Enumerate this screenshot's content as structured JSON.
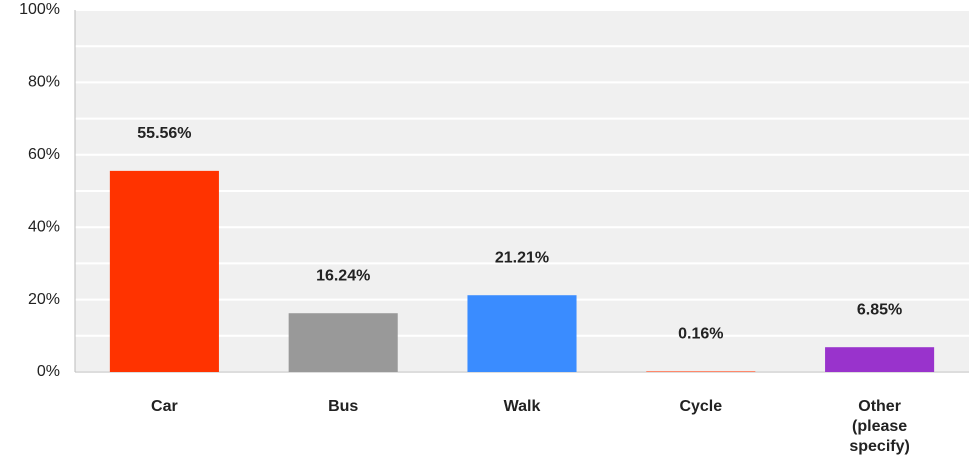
{
  "chart_data": {
    "type": "bar",
    "categories": [
      "Car",
      "Bus",
      "Walk",
      "Cycle",
      "Other (please specify)"
    ],
    "values": [
      55.56,
      16.24,
      21.21,
      0.16,
      6.85
    ],
    "value_labels": [
      "55.56%",
      "16.24%",
      "21.21%",
      "0.16%",
      "6.85%"
    ],
    "colors": [
      "#ff3300",
      "#999999",
      "#3a8cff",
      "#ff3300",
      "#9933cc"
    ],
    "ylim": [
      0,
      100
    ],
    "yticks": [
      {
        "value": 0,
        "label": "0%"
      },
      {
        "value": 20,
        "label": "20%"
      },
      {
        "value": 40,
        "label": "40%"
      },
      {
        "value": 60,
        "label": "60%"
      },
      {
        "value": 80,
        "label": "80%"
      },
      {
        "value": 100,
        "label": "100%"
      }
    ],
    "minor_yticks": [
      10,
      30,
      50,
      70,
      90
    ],
    "grid": true
  }
}
